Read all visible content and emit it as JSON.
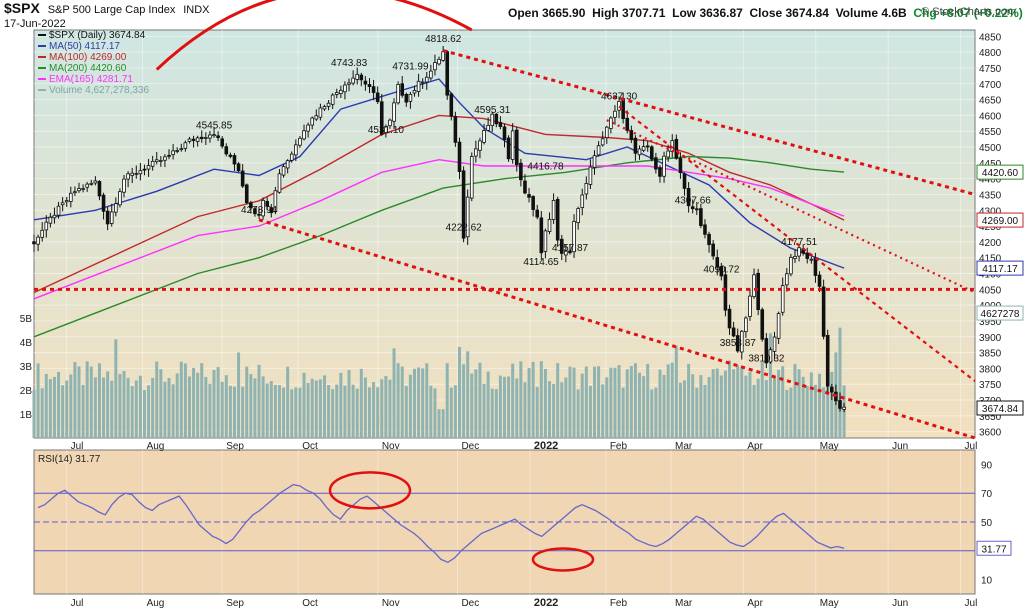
{
  "header": {
    "symbol": "$SPX",
    "name": "S&P 500 Large Cap Index",
    "exchange": "INDX",
    "date": "17-Jun-2022",
    "open": "Open 3665.90",
    "high": "High 3707.71",
    "low": "Low 3636.87",
    "close": "Close 3674.84",
    "volume": "Volume 4.6B",
    "change": "Chg +8.07 (+0.22%)",
    "brand": "© StockCharts.com"
  },
  "colors": {
    "price_panel_top": "#cfe6e2",
    "price_panel_bottom": "#f2e0bf",
    "rsi_panel": "#f1d6b4",
    "ma50": "#2b3bb0",
    "ma100": "#c0282a",
    "ma200": "#2a8a2a",
    "ema165": "#ff30ff",
    "volume": "#8fb3b1",
    "candle": "#111111",
    "rsi": "#6666cc",
    "trend": "#e01010"
  },
  "legend": [
    {
      "label": "$SPX (Daily) 3674.84",
      "color": "#111111"
    },
    {
      "label": "MA(50) 4117.17",
      "color": "#2b3bb0"
    },
    {
      "label": "MA(100) 4269.00",
      "color": "#c0282a"
    },
    {
      "label": "MA(200) 4420.60",
      "color": "#2a8a2a"
    },
    {
      "label": "EMA(165) 4281.71",
      "color": "#ff30ff"
    },
    {
      "label": "Volume 4,627,278,336",
      "color": "#8fb3b1"
    }
  ],
  "chart_data": [
    {
      "type": "line",
      "title": "$SPX (Daily)",
      "x_axis_labels": [
        "Jul",
        "Aug",
        "Sep",
        "Oct",
        "Nov",
        "Dec",
        "2022",
        "Feb",
        "Mar",
        "Apr",
        "May",
        "Jun",
        "Jul"
      ],
      "y_axis_ticks": [
        3600,
        3650,
        3700,
        3750,
        3800,
        3850,
        3900,
        3950,
        4000,
        4050,
        4100,
        4150,
        4200,
        4250,
        4300,
        4350,
        4400,
        4450,
        4500,
        4550,
        4600,
        4650,
        4700,
        4750,
        4800,
        4850
      ],
      "ylim": [
        3580,
        4870
      ],
      "volume_ticks": [
        "1B",
        "2B",
        "3B",
        "4B",
        "5B"
      ],
      "price_path": [
        [
          0,
          4200
        ],
        [
          5,
          4290
        ],
        [
          10,
          4360
        ],
        [
          15,
          4390
        ],
        [
          18,
          4260
        ],
        [
          22,
          4400
        ],
        [
          28,
          4440
        ],
        [
          33,
          4470
        ],
        [
          38,
          4520
        ],
        [
          44,
          4546
        ],
        [
          47,
          4480
        ],
        [
          50,
          4430
        ],
        [
          52,
          4330
        ],
        [
          55,
          4280
        ],
        [
          56,
          4340
        ],
        [
          58,
          4300
        ],
        [
          60,
          4420
        ],
        [
          63,
          4480
        ],
        [
          66,
          4560
        ],
        [
          70,
          4620
        ],
        [
          73,
          4660
        ],
        [
          76,
          4700
        ],
        [
          79,
          4730
        ],
        [
          81,
          4700
        ],
        [
          84,
          4650
        ],
        [
          85,
          4540
        ],
        [
          87,
          4580
        ],
        [
          89,
          4690
        ],
        [
          91,
          4650
        ],
        [
          94,
          4700
        ],
        [
          97,
          4740
        ],
        [
          99,
          4780
        ],
        [
          100,
          4800
        ],
        [
          101,
          4660
        ],
        [
          103,
          4520
        ],
        [
          104,
          4420
        ],
        [
          105,
          4220
        ],
        [
          106,
          4350
        ],
        [
          107,
          4470
        ],
        [
          109,
          4520
        ],
        [
          112,
          4595
        ],
        [
          114,
          4560
        ],
        [
          116,
          4470
        ],
        [
          117,
          4560
        ],
        [
          118,
          4440
        ],
        [
          120,
          4360
        ],
        [
          123,
          4280
        ],
        [
          124,
          4160
        ],
        [
          125,
          4230
        ],
        [
          127,
          4330
        ],
        [
          128,
          4200
        ],
        [
          129,
          4170
        ],
        [
          131,
          4160
        ],
        [
          132,
          4270
        ],
        [
          135,
          4380
        ],
        [
          137,
          4480
        ],
        [
          139,
          4520
        ],
        [
          141,
          4590
        ],
        [
          143,
          4637
        ],
        [
          145,
          4560
        ],
        [
          147,
          4480
        ],
        [
          150,
          4500
        ],
        [
          153,
          4400
        ],
        [
          154,
          4470
        ],
        [
          156,
          4520
        ],
        [
          158,
          4420
        ],
        [
          160,
          4310
        ],
        [
          162,
          4300
        ],
        [
          164,
          4220
        ],
        [
          166,
          4150
        ],
        [
          168,
          4090
        ],
        [
          169,
          3990
        ],
        [
          170,
          3930
        ],
        [
          172,
          3858
        ],
        [
          174,
          3960
        ],
        [
          176,
          4090
        ],
        [
          178,
          3900
        ],
        [
          179,
          3810
        ],
        [
          181,
          3900
        ],
        [
          183,
          4060
        ],
        [
          185,
          4150
        ],
        [
          187,
          4173
        ],
        [
          190,
          4140
        ],
        [
          192,
          4060
        ],
        [
          193,
          3900
        ],
        [
          194,
          3750
        ],
        [
          196,
          3700
        ],
        [
          197,
          3667
        ],
        [
          198,
          3674.84
        ]
      ],
      "series": [
        {
          "name": "MA(50)",
          "last": 4117.17,
          "points": [
            [
              0,
              4270
            ],
            [
              15,
              4300
            ],
            [
              30,
              4360
            ],
            [
              44,
              4430
            ],
            [
              55,
              4410
            ],
            [
              65,
              4470
            ],
            [
              75,
              4620
            ],
            [
              85,
              4660
            ],
            [
              99,
              4715
            ],
            [
              104,
              4640
            ],
            [
              110,
              4560
            ],
            [
              120,
              4480
            ],
            [
              135,
              4460
            ],
            [
              145,
              4500
            ],
            [
              155,
              4440
            ],
            [
              165,
              4380
            ],
            [
              175,
              4260
            ],
            [
              185,
              4180
            ],
            [
              198,
              4117.17
            ]
          ]
        },
        {
          "name": "MA(100)",
          "last": 4269.0,
          "points": [
            [
              0,
              4040
            ],
            [
              20,
              4160
            ],
            [
              40,
              4280
            ],
            [
              55,
              4330
            ],
            [
              70,
              4430
            ],
            [
              85,
              4540
            ],
            [
              99,
              4600
            ],
            [
              110,
              4590
            ],
            [
              125,
              4540
            ],
            [
              140,
              4530
            ],
            [
              150,
              4520
            ],
            [
              160,
              4480
            ],
            [
              170,
              4420
            ],
            [
              180,
              4380
            ],
            [
              190,
              4320
            ],
            [
              198,
              4269
            ]
          ]
        },
        {
          "name": "MA(200)",
          "last": 4420.6,
          "points": [
            [
              0,
              3900
            ],
            [
              20,
              4000
            ],
            [
              40,
              4100
            ],
            [
              55,
              4150
            ],
            [
              70,
              4220
            ],
            [
              85,
              4300
            ],
            [
              100,
              4370
            ],
            [
              115,
              4400
            ],
            [
              130,
              4420
            ],
            [
              145,
              4450
            ],
            [
              160,
              4470
            ],
            [
              170,
              4465
            ],
            [
              180,
              4450
            ],
            [
              190,
              4430
            ],
            [
              198,
              4420.6
            ]
          ]
        },
        {
          "name": "EMA(165)",
          "last": 4281.71,
          "points": [
            [
              0,
              4020
            ],
            [
              20,
              4120
            ],
            [
              40,
              4220
            ],
            [
              55,
              4250
            ],
            [
              70,
              4330
            ],
            [
              85,
              4420
            ],
            [
              99,
              4460
            ],
            [
              110,
              4440
            ],
            [
              125,
              4440
            ],
            [
              140,
              4440
            ],
            [
              150,
              4440
            ],
            [
              160,
              4420
            ],
            [
              170,
              4400
            ],
            [
              180,
              4370
            ],
            [
              190,
              4320
            ],
            [
              198,
              4281.71
            ]
          ]
        }
      ],
      "annotations": [
        {
          "label": "4545.85",
          "x": 44,
          "y": 4546
        },
        {
          "label": "4278.94",
          "x": 55,
          "y": 4279
        },
        {
          "label": "4743.83",
          "x": 77,
          "y": 4744
        },
        {
          "label": "4731.99",
          "x": 92,
          "y": 4732
        },
        {
          "label": "4818.62",
          "x": 100,
          "y": 4819
        },
        {
          "label": "4531.10",
          "x": 86,
          "y": 4531
        },
        {
          "label": "4595.31",
          "x": 112,
          "y": 4595
        },
        {
          "label": "4222.62",
          "x": 105,
          "y": 4223
        },
        {
          "label": "4416.78",
          "x": 125,
          "y": 4417
        },
        {
          "label": "4114.65",
          "x": 124,
          "y": 4115
        },
        {
          "label": "4157.87",
          "x": 131,
          "y": 4158
        },
        {
          "label": "4637.30",
          "x": 143,
          "y": 4637
        },
        {
          "label": "4307.66",
          "x": 161,
          "y": 4308
        },
        {
          "label": "4090.72",
          "x": 168,
          "y": 4091
        },
        {
          "label": "3858.87",
          "x": 172,
          "y": 3859
        },
        {
          "label": "3810.32",
          "x": 179,
          "y": 3810
        },
        {
          "label": "4177.51",
          "x": 187,
          "y": 4178
        }
      ],
      "right_labels": [
        {
          "label": "4420.60",
          "value": 4420.6,
          "color": "#2a8a2a"
        },
        {
          "label": "4269.00",
          "value": 4269.0,
          "color": "#c0282a"
        },
        {
          "label": "4117.17",
          "value": 4117.17,
          "color": "#2b3bb0"
        },
        {
          "label": "4627278",
          "value": 3975,
          "color": "#8fb3b1"
        },
        {
          "label": "3674.84",
          "value": 3674.84,
          "color": "#111111"
        }
      ],
      "horizontal_level": 4050,
      "trendlines": [
        {
          "x": [
            100,
            230
          ],
          "y": [
            4805,
            4350
          ],
          "style": "dashed"
        },
        {
          "x": [
            55,
            230
          ],
          "y": [
            4270,
            3580
          ],
          "style": "dashed"
        },
        {
          "x": [
            143,
            230
          ],
          "y": [
            4628,
            3760
          ],
          "style": "dashed"
        },
        {
          "x": [
            140,
            230
          ],
          "y": [
            4585,
            4040
          ],
          "style": "dashed"
        }
      ]
    },
    {
      "type": "line",
      "title": "RSI(14) 31.77",
      "ylim": [
        0,
        100
      ],
      "y_axis_ticks": [
        10,
        30,
        50,
        70,
        90
      ],
      "levels": [
        70,
        50,
        30
      ],
      "last": 31.77,
      "series": [
        {
          "name": "RSI(14)",
          "values": [
            60,
            62,
            66,
            70,
            72,
            68,
            64,
            62,
            60,
            57,
            55,
            62,
            67,
            70,
            69,
            64,
            60,
            58,
            62,
            64,
            66,
            68,
            62,
            55,
            48,
            44,
            40,
            38,
            35,
            38,
            44,
            50,
            55,
            58,
            62,
            66,
            70,
            73,
            76,
            75,
            72,
            70,
            66,
            60,
            55,
            52,
            58,
            62,
            66,
            68,
            64,
            60,
            56,
            52,
            48,
            45,
            42,
            38,
            33,
            29,
            24,
            22,
            25,
            30,
            34,
            38,
            42,
            44,
            46,
            48,
            50,
            52,
            48,
            45,
            42,
            40,
            44,
            48,
            52,
            56,
            60,
            62,
            60,
            58,
            55,
            52,
            48,
            45,
            42,
            38,
            36,
            34,
            33,
            35,
            38,
            42,
            46,
            50,
            54,
            52,
            48,
            44,
            40,
            36,
            34,
            33,
            36,
            40,
            45,
            50,
            54,
            56,
            52,
            48,
            44,
            40,
            36,
            34,
            32,
            33,
            31.77
          ]
        }
      ]
    }
  ],
  "rsi_legend": "RSI(14) 31.77"
}
